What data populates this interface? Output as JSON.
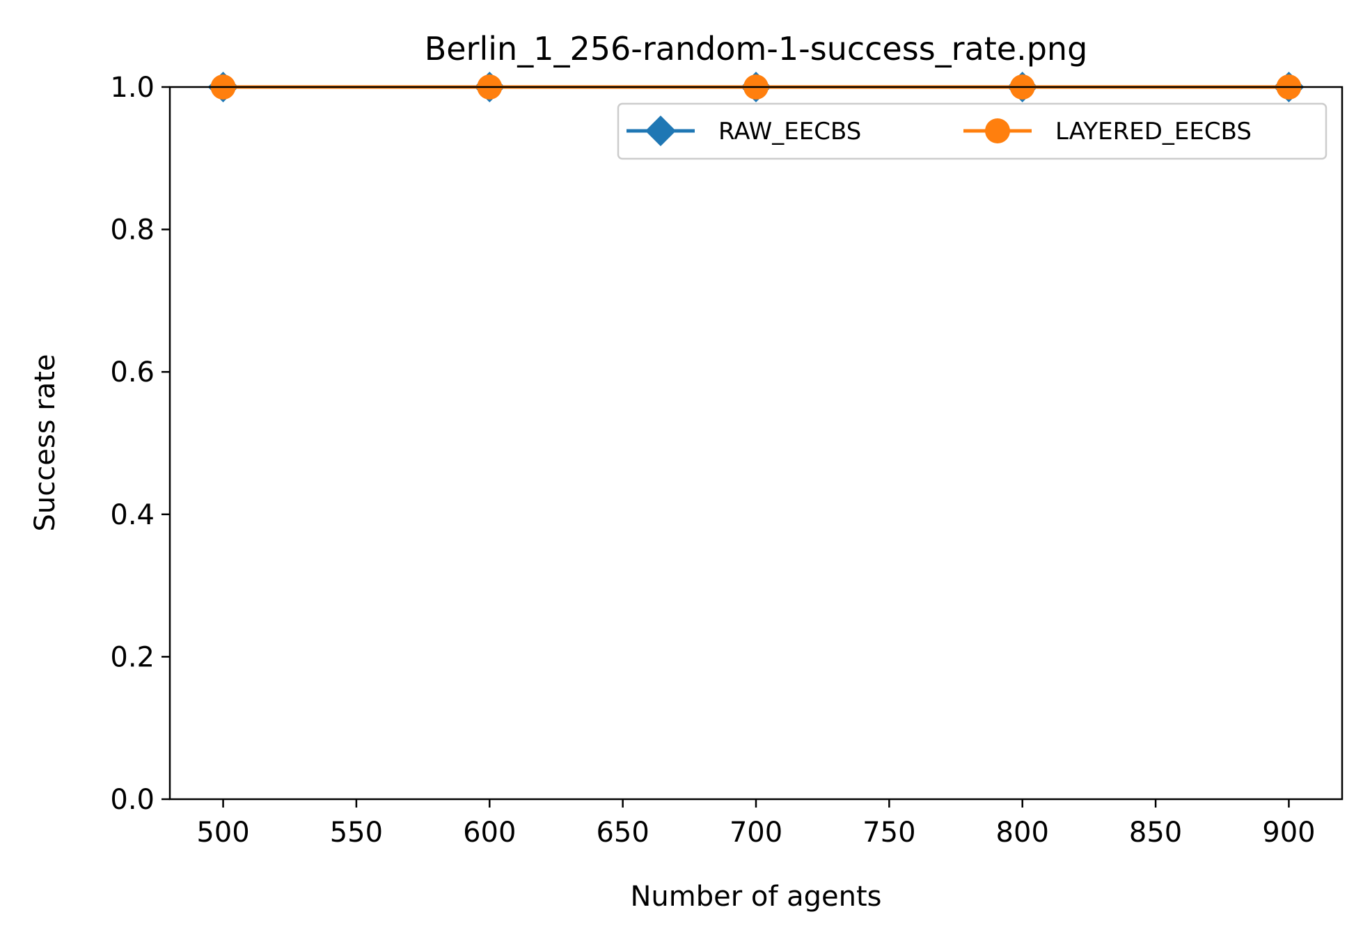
{
  "chart_data": {
    "type": "line",
    "title": "Berlin_1_256-random-1-success_rate.png",
    "xlabel": "Number of agents",
    "ylabel": "Success rate",
    "x": [
      500,
      600,
      700,
      800,
      900
    ],
    "xlim": [
      480,
      920
    ],
    "ylim": [
      0.0,
      1.0
    ],
    "xticks": [
      500,
      550,
      600,
      650,
      700,
      750,
      800,
      850,
      900
    ],
    "yticks": [
      0.0,
      0.2,
      0.4,
      0.6,
      0.8,
      1.0
    ],
    "ytick_labels": [
      "0.0",
      "0.2",
      "0.4",
      "0.6",
      "0.8",
      "1.0"
    ],
    "grid": false,
    "legend_position": "top-right",
    "legend_columns": 2,
    "series": [
      {
        "name": "RAW_EECBS",
        "values": [
          1.0,
          1.0,
          1.0,
          1.0,
          1.0
        ],
        "color": "#1f77b4",
        "marker": "diamond"
      },
      {
        "name": "LAYERED_EECBS",
        "values": [
          1.0,
          1.0,
          1.0,
          1.0,
          1.0
        ],
        "color": "#ff7f0e",
        "marker": "circle"
      }
    ]
  }
}
